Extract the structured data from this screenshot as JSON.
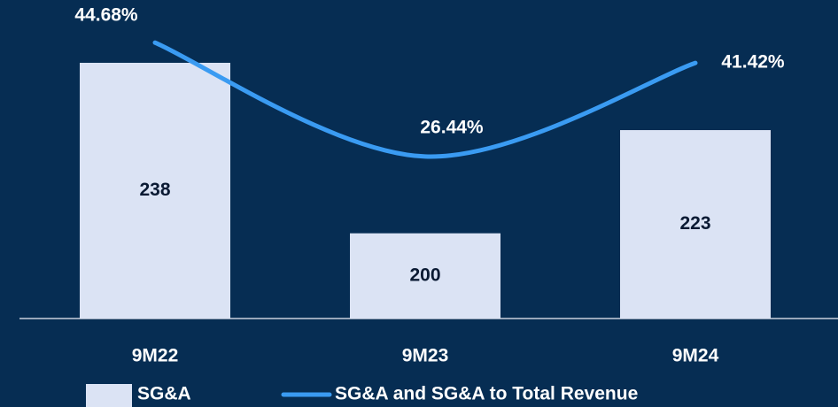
{
  "chart_data": {
    "type": "bar+line",
    "categories": [
      "9M22",
      "9M23",
      "9M24"
    ],
    "ylim": [
      181,
      252
    ],
    "y2lim": [
      0.5,
      51.5
    ],
    "series": [
      {
        "name": "SG&A",
        "type": "bar",
        "color": "#dbe3f4",
        "values": [
          238,
          200,
          223
        ]
      },
      {
        "name": "SG&A and SG&A to Total Revenue",
        "type": "line",
        "axis": "y2",
        "color": "#3a9bf2",
        "values": [
          44.68,
          26.44,
          41.42
        ],
        "value_labels": [
          "44.68%",
          "26.44%",
          "41.42%"
        ]
      }
    ]
  }
}
